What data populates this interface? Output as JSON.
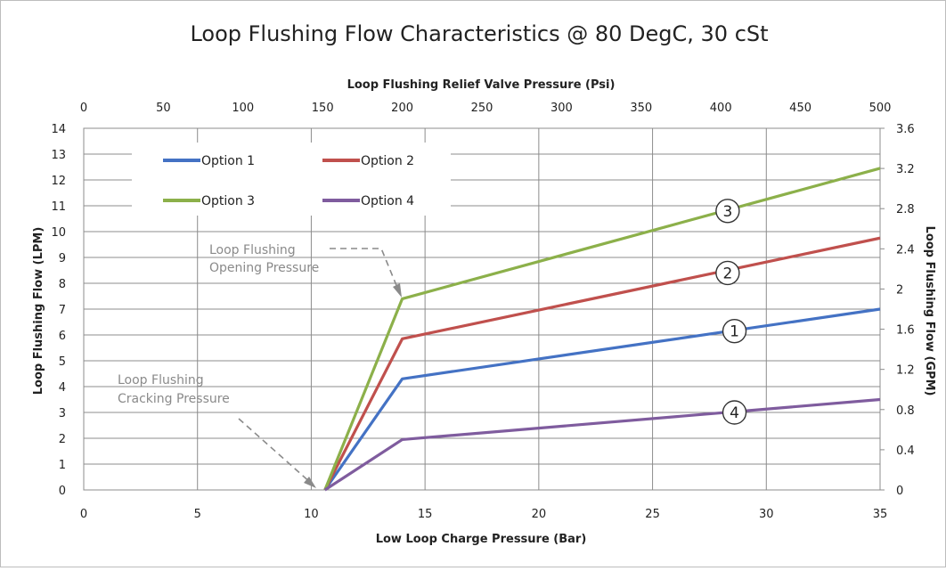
{
  "chart_data": {
    "type": "line",
    "title": "Loop Flushing Flow Characteristics @ 80 DegC, 30 cSt",
    "xlabel": "Low Loop Charge Pressure (Bar)",
    "x2label": "Loop Flushing Relief Valve Pressure (Psi)",
    "ylabel": "Loop Flushing Flow (LPM)",
    "y2label": "Loop Flushing Flow (GPM)",
    "xlim": [
      0,
      35
    ],
    "x2lim": [
      0,
      500
    ],
    "ylim": [
      0,
      14
    ],
    "y2lim": [
      0,
      3.6
    ],
    "x_ticks": [
      "0",
      "5",
      "10",
      "15",
      "20",
      "25",
      "30",
      "35"
    ],
    "x2_ticks": [
      "0",
      "50",
      "100",
      "150",
      "200",
      "250",
      "300",
      "350",
      "400",
      "450",
      "500"
    ],
    "y_ticks": [
      "0",
      "1",
      "2",
      "3",
      "4",
      "5",
      "6",
      "7",
      "8",
      "9",
      "10",
      "11",
      "12",
      "13",
      "14"
    ],
    "y2_ticks": [
      "0",
      "0.4",
      "0.8",
      "1.2",
      "1.6",
      "2",
      "2.4",
      "2.8",
      "3.2",
      "3.6"
    ],
    "grid": true,
    "legend_position": "top-left",
    "series": [
      {
        "name": "Option 1",
        "color": "#4472c4",
        "x": [
          10.6,
          14,
          35
        ],
        "y": [
          0,
          4.3,
          7.0
        ]
      },
      {
        "name": "Option 2",
        "color": "#c0504d",
        "x": [
          10.6,
          14,
          35
        ],
        "y": [
          0,
          5.85,
          9.75
        ]
      },
      {
        "name": "Option 3",
        "color": "#8cb04a",
        "x": [
          10.6,
          14,
          35
        ],
        "y": [
          0,
          7.4,
          12.45
        ]
      },
      {
        "name": "Option 4",
        "color": "#7f5c9e",
        "x": [
          10.6,
          14,
          35
        ],
        "y": [
          0,
          1.95,
          3.5
        ]
      }
    ],
    "callouts": [
      {
        "label": "3",
        "x": 28.3,
        "y": 10.8
      },
      {
        "label": "2",
        "x": 28.3,
        "y": 8.4
      },
      {
        "label": "1",
        "x": 28.6,
        "y": 6.15
      },
      {
        "label": "4",
        "x": 28.6,
        "y": 3.0
      }
    ],
    "annotations": [
      {
        "line1": "Loop Flushing",
        "line2": "Opening Pressure"
      },
      {
        "line1": "Loop Flushing",
        "line2": "Cracking Pressure"
      }
    ]
  }
}
